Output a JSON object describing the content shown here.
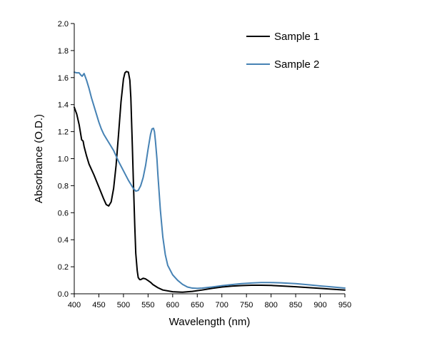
{
  "chart_data": {
    "type": "line",
    "xlabel": "Wavelength (nm)",
    "ylabel": "Absorbance (O.D.)",
    "xlim": [
      400,
      950
    ],
    "ylim": [
      0,
      2.0
    ],
    "xticks": [
      400,
      450,
      500,
      550,
      600,
      650,
      700,
      750,
      800,
      850,
      900,
      950
    ],
    "yticks": [
      0.0,
      0.2,
      0.4,
      0.6,
      0.8,
      1.0,
      1.2,
      1.4,
      1.6,
      1.8,
      2.0
    ],
    "ytick_labels": [
      "0.0",
      "0.2",
      "0.4",
      "0.6",
      "0.8",
      "1.0",
      "1.2",
      "1.4",
      "1.6",
      "1.8",
      "2.0"
    ],
    "grid": false,
    "legend_position": "top-right",
    "series": [
      {
        "name": "Sample 1",
        "color": "#000000",
        "x": [
          400,
          405,
          410,
          415,
          418,
          420,
          425,
          430,
          440,
          450,
          460,
          465,
          470,
          475,
          480,
          485,
          490,
          495,
          500,
          503,
          506,
          510,
          513,
          515,
          518,
          520,
          523,
          525,
          528,
          530,
          533,
          535,
          540,
          545,
          550,
          555,
          560,
          570,
          580,
          600,
          620,
          640,
          660,
          680,
          700,
          720,
          740,
          760,
          780,
          800,
          820,
          850,
          880,
          900,
          920,
          950
        ],
        "y": [
          1.38,
          1.33,
          1.25,
          1.14,
          1.13,
          1.09,
          1.02,
          0.96,
          0.88,
          0.79,
          0.7,
          0.66,
          0.65,
          0.68,
          0.78,
          0.95,
          1.18,
          1.42,
          1.59,
          1.635,
          1.645,
          1.64,
          1.58,
          1.45,
          1.1,
          0.85,
          0.5,
          0.3,
          0.17,
          0.12,
          0.105,
          0.105,
          0.115,
          0.11,
          0.098,
          0.085,
          0.068,
          0.045,
          0.028,
          0.015,
          0.012,
          0.018,
          0.028,
          0.04,
          0.05,
          0.057,
          0.061,
          0.063,
          0.063,
          0.062,
          0.058,
          0.052,
          0.045,
          0.04,
          0.035,
          0.028
        ]
      },
      {
        "name": "Sample 2",
        "color": "#4682b4",
        "x": [
          400,
          405,
          410,
          413,
          416,
          420,
          425,
          430,
          435,
          440,
          445,
          450,
          455,
          460,
          465,
          470,
          480,
          490,
          500,
          510,
          515,
          520,
          525,
          530,
          535,
          540,
          545,
          550,
          555,
          558,
          561,
          563,
          565,
          568,
          570,
          575,
          580,
          585,
          590,
          600,
          610,
          620,
          630,
          640,
          650,
          660,
          680,
          700,
          720,
          740,
          760,
          780,
          800,
          820,
          850,
          880,
          900,
          920,
          950
        ],
        "y": [
          1.64,
          1.635,
          1.635,
          1.62,
          1.61,
          1.63,
          1.58,
          1.52,
          1.45,
          1.39,
          1.33,
          1.27,
          1.22,
          1.18,
          1.15,
          1.12,
          1.06,
          0.98,
          0.91,
          0.84,
          0.81,
          0.78,
          0.76,
          0.765,
          0.8,
          0.86,
          0.95,
          1.07,
          1.18,
          1.22,
          1.225,
          1.2,
          1.13,
          1.0,
          0.88,
          0.62,
          0.42,
          0.29,
          0.21,
          0.14,
          0.1,
          0.07,
          0.05,
          0.042,
          0.04,
          0.042,
          0.05,
          0.06,
          0.068,
          0.075,
          0.08,
          0.083,
          0.083,
          0.081,
          0.075,
          0.065,
          0.058,
          0.052,
          0.042
        ]
      }
    ]
  }
}
